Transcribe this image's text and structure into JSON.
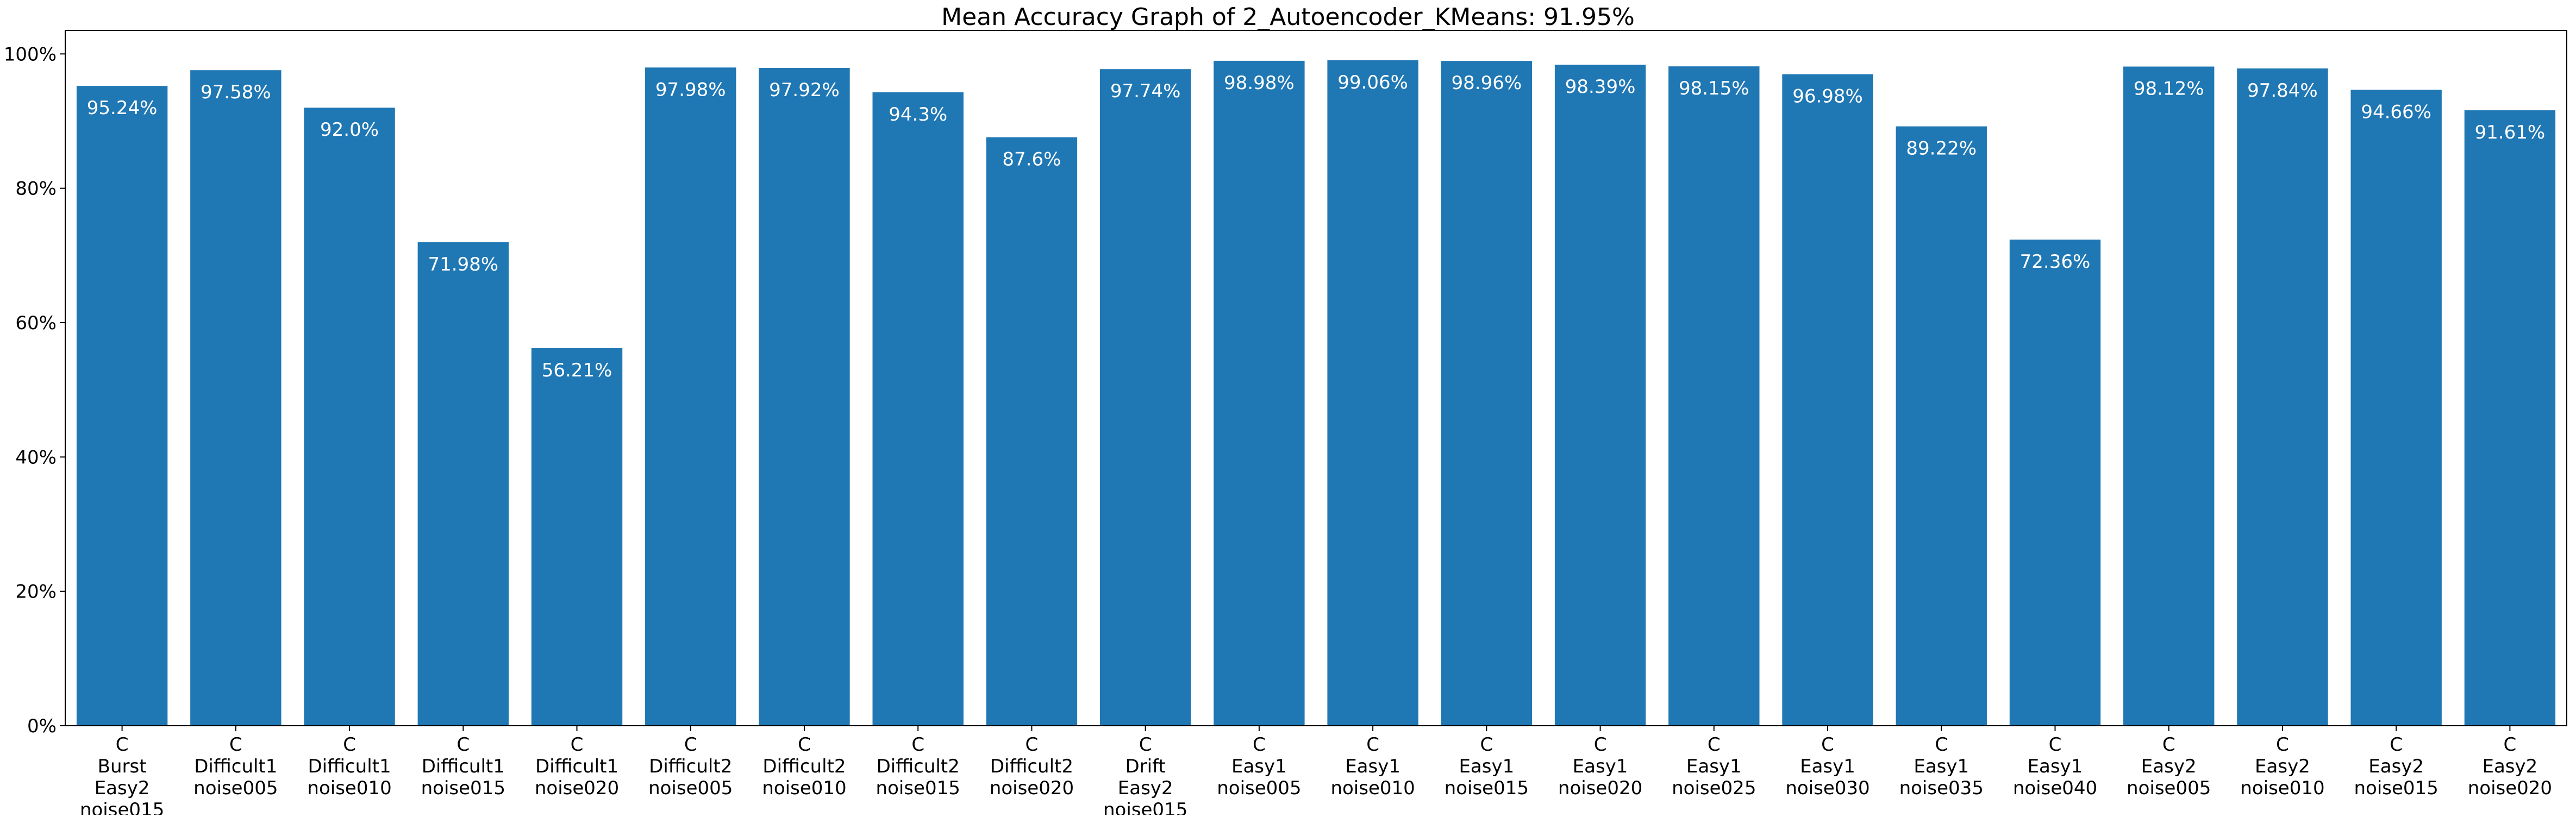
{
  "chart_data": {
    "type": "bar",
    "title": "Mean Accuracy Graph of 2_Autoencoder_KMeans: 91.95%",
    "xlabel": "",
    "ylabel": "",
    "ylim": [
      0,
      1.035
    ],
    "yticks": [
      {
        "value": 0.0,
        "label": "0%"
      },
      {
        "value": 0.2,
        "label": "20%"
      },
      {
        "value": 0.4,
        "label": "40%"
      },
      {
        "value": 0.6,
        "label": "60%"
      },
      {
        "value": 0.8,
        "label": "80%"
      },
      {
        "value": 1.0,
        "label": "100%"
      }
    ],
    "grid": false,
    "legend": "none",
    "bar_color": "#1f77b4",
    "label_color": "#ffffff",
    "categories": [
      [
        "C",
        "Burst",
        "Easy2",
        "noise015"
      ],
      [
        "C",
        "Difficult1",
        "noise005"
      ],
      [
        "C",
        "Difficult1",
        "noise010"
      ],
      [
        "C",
        "Difficult1",
        "noise015"
      ],
      [
        "C",
        "Difficult1",
        "noise020"
      ],
      [
        "C",
        "Difficult2",
        "noise005"
      ],
      [
        "C",
        "Difficult2",
        "noise010"
      ],
      [
        "C",
        "Difficult2",
        "noise015"
      ],
      [
        "C",
        "Difficult2",
        "noise020"
      ],
      [
        "C",
        "Drift",
        "Easy2",
        "noise015"
      ],
      [
        "C",
        "Easy1",
        "noise005"
      ],
      [
        "C",
        "Easy1",
        "noise010"
      ],
      [
        "C",
        "Easy1",
        "noise015"
      ],
      [
        "C",
        "Easy1",
        "noise020"
      ],
      [
        "C",
        "Easy1",
        "noise025"
      ],
      [
        "C",
        "Easy1",
        "noise030"
      ],
      [
        "C",
        "Easy1",
        "noise035"
      ],
      [
        "C",
        "Easy1",
        "noise040"
      ],
      [
        "C",
        "Easy2",
        "noise005"
      ],
      [
        "C",
        "Easy2",
        "noise010"
      ],
      [
        "C",
        "Easy2",
        "noise015"
      ],
      [
        "C",
        "Easy2",
        "noise020"
      ]
    ],
    "values": [
      0.9524,
      0.9758,
      0.92,
      0.7198,
      0.5621,
      0.9798,
      0.9792,
      0.943,
      0.876,
      0.9774,
      0.9898,
      0.9906,
      0.9896,
      0.9839,
      0.9815,
      0.9698,
      0.8922,
      0.7236,
      0.9812,
      0.9784,
      0.9466,
      0.9161
    ],
    "data_labels": [
      "95.24%",
      "97.58%",
      "92.0%",
      "71.98%",
      "56.21%",
      "97.98%",
      "97.92%",
      "94.3%",
      "87.6%",
      "97.74%",
      "98.98%",
      "99.06%",
      "98.96%",
      "98.39%",
      "98.15%",
      "96.98%",
      "89.22%",
      "72.36%",
      "98.12%",
      "97.84%",
      "94.66%",
      "91.61%"
    ]
  }
}
